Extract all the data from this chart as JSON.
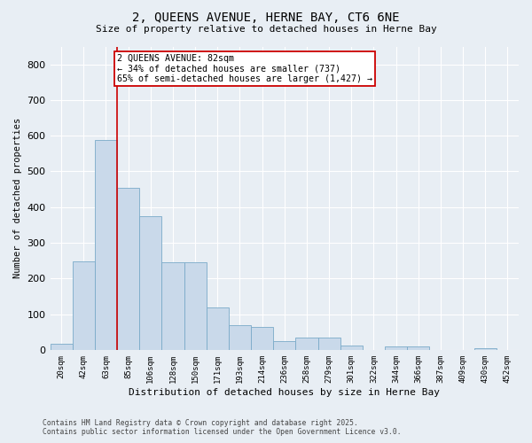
{
  "title_line1": "2, QUEENS AVENUE, HERNE BAY, CT6 6NE",
  "title_line2": "Size of property relative to detached houses in Herne Bay",
  "xlabel": "Distribution of detached houses by size in Herne Bay",
  "ylabel": "Number of detached properties",
  "categories": [
    "20sqm",
    "42sqm",
    "63sqm",
    "85sqm",
    "106sqm",
    "128sqm",
    "150sqm",
    "171sqm",
    "193sqm",
    "214sqm",
    "236sqm",
    "258sqm",
    "279sqm",
    "301sqm",
    "322sqm",
    "344sqm",
    "366sqm",
    "387sqm",
    "409sqm",
    "430sqm",
    "452sqm"
  ],
  "values": [
    18,
    248,
    588,
    455,
    375,
    245,
    245,
    120,
    70,
    65,
    25,
    35,
    35,
    12,
    0,
    10,
    10,
    0,
    0,
    5,
    0
  ],
  "bar_color": "#c9d9ea",
  "bar_edge_color": "#7aaac8",
  "vline_color": "#cc0000",
  "annotation_text": "2 QUEENS AVENUE: 82sqm\n← 34% of detached houses are smaller (737)\n65% of semi-detached houses are larger (1,427) →",
  "annotation_box_color": "#ffffff",
  "annotation_box_edge_color": "#cc0000",
  "ylim": [
    0,
    850
  ],
  "yticks": [
    0,
    100,
    200,
    300,
    400,
    500,
    600,
    700,
    800
  ],
  "background_color": "#e8eef4",
  "plot_background": "#e8eef4",
  "grid_color": "#ffffff",
  "footer_line1": "Contains HM Land Registry data © Crown copyright and database right 2025.",
  "footer_line2": "Contains public sector information licensed under the Open Government Licence v3.0."
}
